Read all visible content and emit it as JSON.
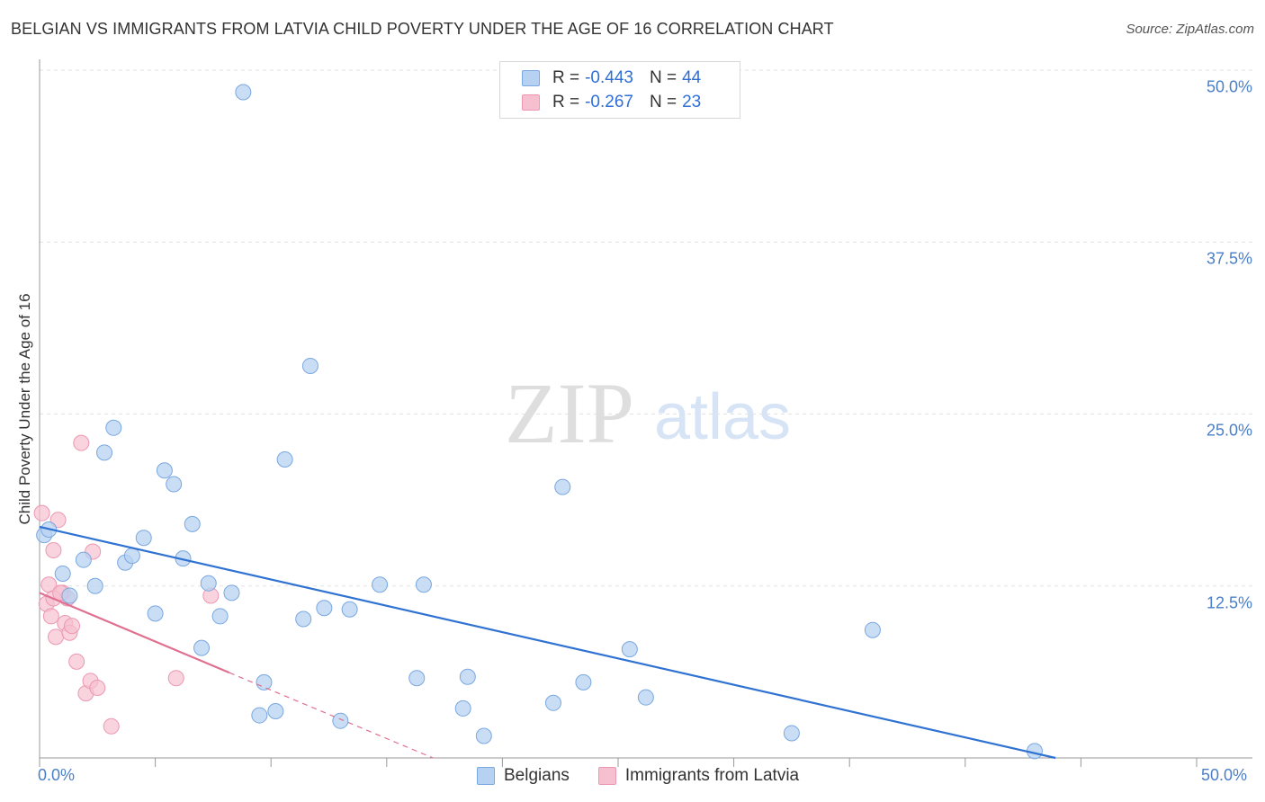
{
  "title": "BELGIAN VS IMMIGRANTS FROM LATVIA CHILD POVERTY UNDER THE AGE OF 16 CORRELATION CHART",
  "source": "Source: ZipAtlas.com",
  "watermark": {
    "zip": "ZIP",
    "atlas": "atlas"
  },
  "legend": {
    "rows": [
      {
        "r_label": "R =",
        "r_value": "-0.443",
        "n_label": "N =",
        "n_value": "44"
      },
      {
        "r_label": "R =",
        "r_value": "-0.267",
        "n_label": "N =",
        "n_value": "23"
      }
    ]
  },
  "colors": {
    "belgians_fill": "#b7d1f2",
    "belgians_stroke": "#7aa8e0",
    "belgians_line": "#2f72d2",
    "latvia_fill": "#f7c0d0",
    "latvia_stroke": "#ec98b2",
    "latvia_line": "#e0708f",
    "tick_text": "#4a7fc8"
  },
  "chart_data": {
    "type": "scatter",
    "title": "BELGIAN VS IMMIGRANTS FROM LATVIA CHILD POVERTY UNDER THE AGE OF 16 CORRELATION CHART",
    "xlabel": "",
    "ylabel": "Child Poverty Under the Age of 16",
    "xlim": [
      0,
      50
    ],
    "ylim": [
      0,
      50
    ],
    "x_tick_labels": [
      "0.0%",
      "50.0%"
    ],
    "y_tick_labels": [
      "12.5%",
      "25.0%",
      "37.5%",
      "50.0%"
    ],
    "y_ticks": [
      12.5,
      25.0,
      37.5,
      50.0
    ],
    "grid": true,
    "series": [
      {
        "name": "Belgians",
        "points": [
          [
            0.2,
            16.2
          ],
          [
            0.4,
            16.6
          ],
          [
            1.0,
            13.4
          ],
          [
            1.3,
            11.8
          ],
          [
            1.9,
            14.4
          ],
          [
            2.4,
            12.5
          ],
          [
            2.8,
            22.2
          ],
          [
            3.2,
            24.0
          ],
          [
            3.7,
            14.2
          ],
          [
            4.0,
            14.7
          ],
          [
            4.5,
            16.0
          ],
          [
            5.0,
            10.5
          ],
          [
            5.4,
            20.9
          ],
          [
            5.8,
            19.9
          ],
          [
            6.2,
            14.5
          ],
          [
            6.6,
            17.0
          ],
          [
            7.0,
            8.0
          ],
          [
            7.3,
            12.7
          ],
          [
            7.8,
            10.3
          ],
          [
            8.3,
            12.0
          ],
          [
            8.8,
            48.4
          ],
          [
            9.5,
            3.1
          ],
          [
            9.7,
            5.5
          ],
          [
            10.2,
            3.4
          ],
          [
            10.6,
            21.7
          ],
          [
            11.4,
            10.1
          ],
          [
            11.7,
            28.5
          ],
          [
            12.3,
            10.9
          ],
          [
            13.0,
            2.7
          ],
          [
            13.4,
            10.8
          ],
          [
            14.7,
            12.6
          ],
          [
            16.3,
            5.8
          ],
          [
            16.6,
            12.6
          ],
          [
            18.3,
            3.6
          ],
          [
            18.5,
            5.9
          ],
          [
            19.2,
            1.6
          ],
          [
            22.2,
            4.0
          ],
          [
            22.6,
            19.7
          ],
          [
            23.5,
            5.5
          ],
          [
            25.5,
            7.9
          ],
          [
            26.2,
            4.4
          ],
          [
            32.5,
            1.8
          ],
          [
            36.0,
            9.3
          ],
          [
            43.0,
            0.5
          ]
        ]
      },
      {
        "name": "Immigrants from Latvia",
        "points": [
          [
            0.1,
            17.8
          ],
          [
            0.3,
            11.2
          ],
          [
            0.4,
            12.6
          ],
          [
            0.5,
            10.3
          ],
          [
            0.6,
            15.1
          ],
          [
            0.7,
            8.8
          ],
          [
            0.8,
            17.3
          ],
          [
            1.0,
            12.0
          ],
          [
            1.1,
            9.8
          ],
          [
            1.2,
            11.6
          ],
          [
            1.3,
            9.1
          ],
          [
            1.4,
            9.6
          ],
          [
            1.6,
            7.0
          ],
          [
            1.8,
            22.9
          ],
          [
            2.0,
            4.7
          ],
          [
            2.2,
            5.6
          ],
          [
            2.3,
            15.0
          ],
          [
            2.5,
            5.1
          ],
          [
            3.1,
            2.3
          ],
          [
            5.9,
            5.8
          ],
          [
            7.4,
            11.8
          ],
          [
            0.6,
            11.6
          ],
          [
            0.9,
            12.0
          ]
        ]
      }
    ],
    "trend_lines": [
      {
        "series": "Belgians",
        "x": [
          0,
          43.9
        ],
        "y": [
          16.8,
          0
        ]
      },
      {
        "series": "Immigrants from Latvia",
        "x": [
          0,
          8.2
        ],
        "y": [
          12.0,
          6.2
        ],
        "dashed_extension": {
          "x": [
            8.2,
            17.0
          ],
          "y": [
            6.2,
            0
          ]
        }
      }
    ]
  }
}
